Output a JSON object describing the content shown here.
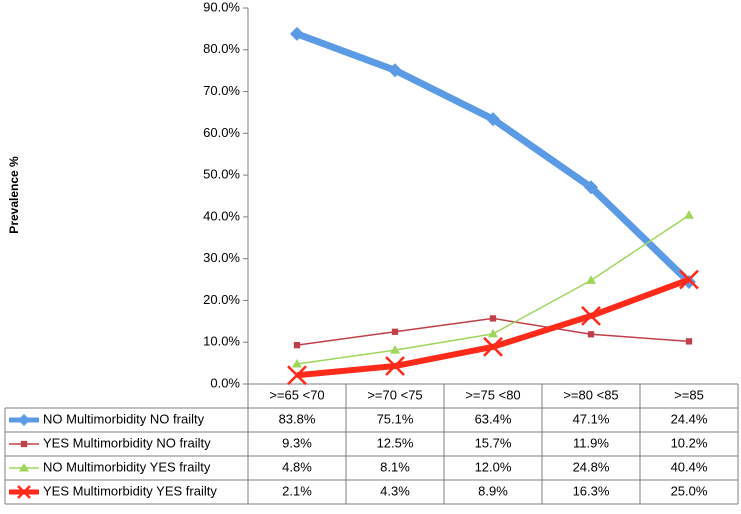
{
  "chart_data": {
    "type": "line",
    "y_label": "Prevalence %",
    "categories": [
      ">=65 <70",
      ">=70 <75",
      ">=75 <80",
      ">=80 <85",
      ">=85"
    ],
    "series": [
      {
        "name": "NO Multimorbidity  NO frailty",
        "color": "#5b9be6",
        "marker": "diamond",
        "width": 7,
        "values": [
          83.8,
          75.1,
          63.4,
          47.1,
          24.4
        ],
        "value_labels": [
          "83.8%",
          "75.1%",
          "63.4%",
          "47.1%",
          "24.4%"
        ]
      },
      {
        "name": "YES Multimorbidity  NO frailty",
        "color": "#c0404a",
        "marker": "square",
        "width": 1.5,
        "values": [
          9.3,
          12.5,
          15.7,
          11.9,
          10.2
        ],
        "value_labels": [
          "9.3%",
          "12.5%",
          "15.7%",
          "11.9%",
          "10.2%"
        ]
      },
      {
        "name": "NO Multimorbidity  YES frailty",
        "color": "#9ed65a",
        "marker": "triangle",
        "width": 1.5,
        "values": [
          4.8,
          8.1,
          12.0,
          24.8,
          40.4
        ],
        "value_labels": [
          "4.8%",
          "8.1%",
          "12.0%",
          "24.8%",
          "40.4%"
        ]
      },
      {
        "name": "YES Multimorbidity YES frailty",
        "color": "#ff2a1a",
        "marker": "x",
        "width": 6,
        "values": [
          2.1,
          4.3,
          8.9,
          16.3,
          25.0
        ],
        "value_labels": [
          "2.1%",
          "4.3%",
          "8.9%",
          "16.3%",
          "25.0%"
        ]
      }
    ],
    "ylim": [
      0,
      90
    ],
    "yticks": [
      {
        "value": 0,
        "label": "0.0%"
      },
      {
        "value": 10,
        "label": "10.0%"
      },
      {
        "value": 20,
        "label": "20.0%"
      },
      {
        "value": 30,
        "label": "30.0%"
      },
      {
        "value": 40,
        "label": "40.0%"
      },
      {
        "value": 50,
        "label": "50.0%"
      },
      {
        "value": 60,
        "label": "60.0%"
      },
      {
        "value": 70,
        "label": "70.0%"
      },
      {
        "value": 80,
        "label": "80.0%"
      },
      {
        "value": 90,
        "label": "90.0%"
      }
    ],
    "grid": false
  }
}
